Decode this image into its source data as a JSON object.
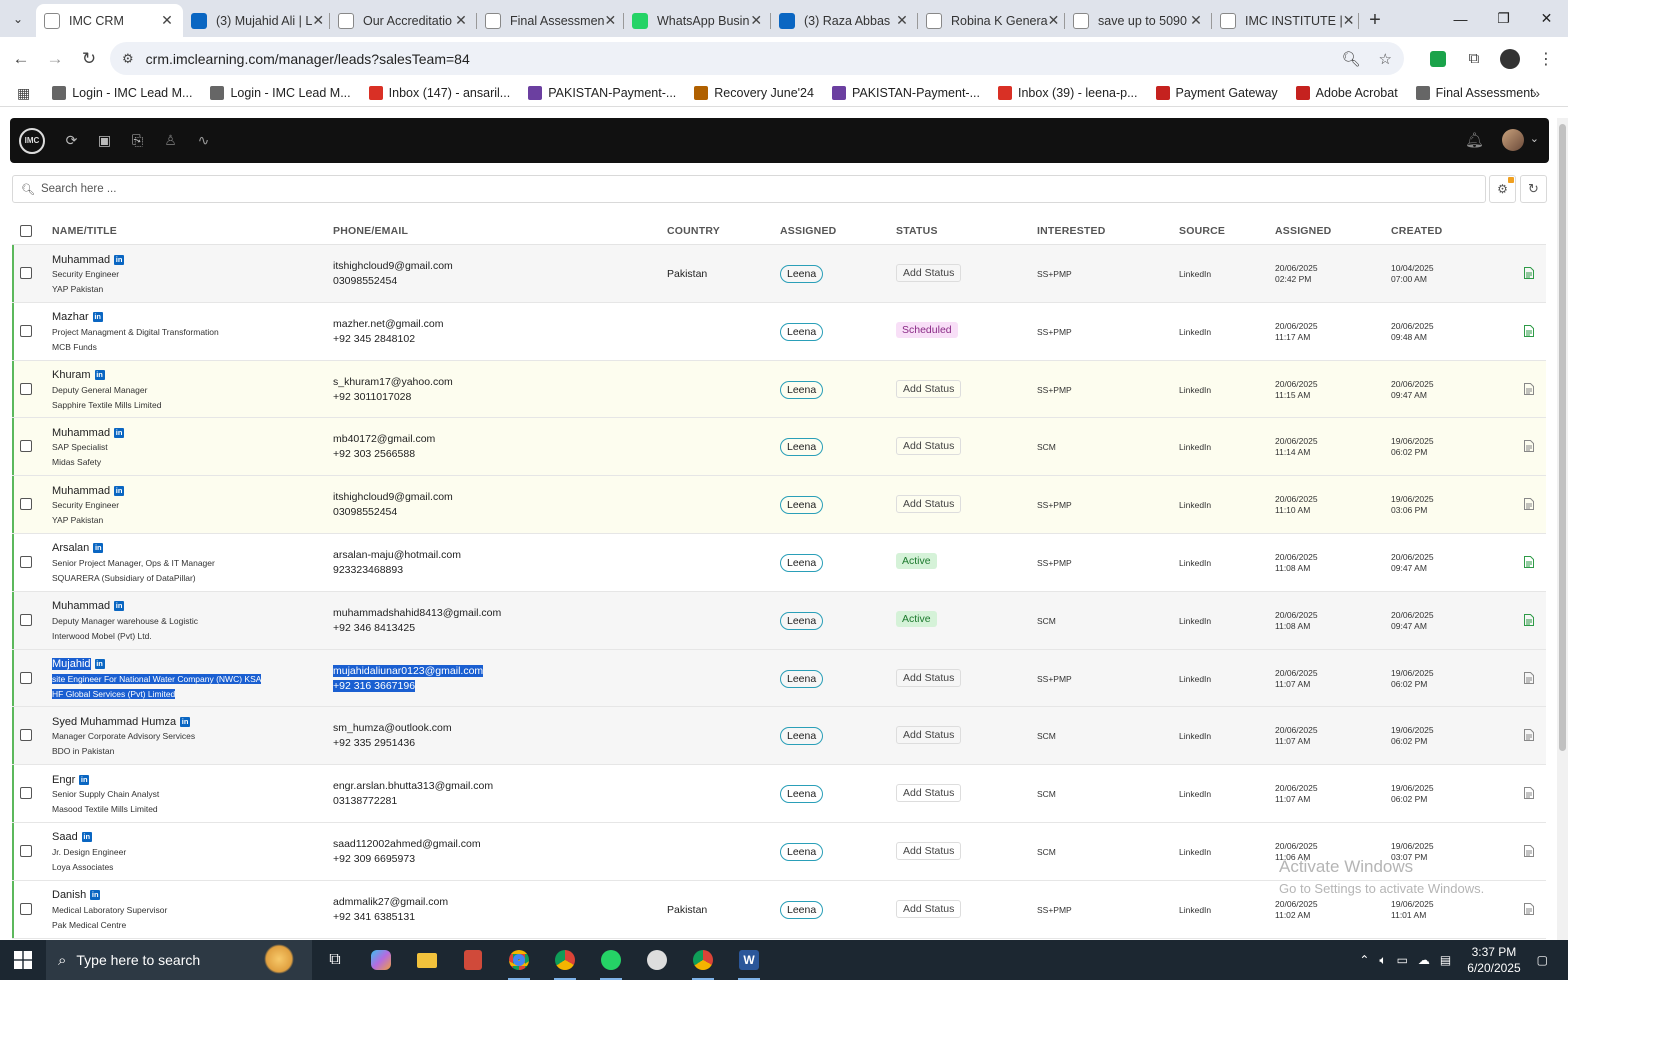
{
  "browser": {
    "tabs": [
      {
        "label": "IMC CRM",
        "active": true
      },
      {
        "label": "(3) Mujahid Ali | L"
      },
      {
        "label": "Our Accreditatio"
      },
      {
        "label": "Final Assessmen"
      },
      {
        "label": "WhatsApp Busin"
      },
      {
        "label": "(3) Raza Abbas"
      },
      {
        "label": "Robina K Genera"
      },
      {
        "label": "save up to 5090"
      },
      {
        "label": "IMC INSTITUTE |"
      }
    ],
    "url": "crm.imclearning.com/manager/leads?salesTeam=84",
    "bookmarks": [
      "Login - IMC Lead M...",
      "Login - IMC Lead M...",
      "Inbox (147) - ansaril...",
      "PAKISTAN-Payment-...",
      "Recovery June'24",
      "PAKISTAN-Payment-...",
      "Inbox (39) - leena-p...",
      "Payment Gateway",
      "Adobe Acrobat",
      "Final Assessment"
    ]
  },
  "app": {
    "logo_text": "IMC",
    "search_placeholder": "Search here ..."
  },
  "table": {
    "headers": {
      "name": "NAME/TITLE",
      "phone": "PHONE/EMAIL",
      "country": "COUNTRY",
      "assigned": "ASSIGNED",
      "status": "STATUS",
      "interested": "INTERESTED",
      "source": "SOURCE",
      "assigned_at": "ASSIGNED",
      "created": "CREATED"
    },
    "rows": [
      {
        "name": "Muhammad",
        "title": "Security Engineer",
        "company": "YAP Pakistan",
        "email": "itshighcloud9@gmail.com",
        "phone": "03098552454",
        "country": "Pakistan",
        "assigned": "Leena",
        "status": "Add Status",
        "interested": "SS+PMP",
        "source": "LinkedIn",
        "assigned_date": "20/06/2025",
        "assigned_time": "02:42 PM",
        "created_date": "10/04/2025",
        "created_time": "07:00 AM"
      },
      {
        "name": "Mazhar",
        "title": "Project Managment & Digital Transformation",
        "company": "MCB Funds",
        "email": "mazher.net@gmail.com",
        "phone": "+92 345 2848102",
        "country": "",
        "assigned": "Leena",
        "status": "Scheduled",
        "interested": "SS+PMP",
        "source": "LinkedIn",
        "assigned_date": "20/06/2025",
        "assigned_time": "11:17 AM",
        "created_date": "20/06/2025",
        "created_time": "09:48 AM"
      },
      {
        "name": "Khuram",
        "title": "Deputy General Manager",
        "company": "Sapphire Textile Mills Limited",
        "email": "s_khuram17@yahoo.com",
        "phone": "+92 3011017028",
        "country": "",
        "assigned": "Leena",
        "status": "Add Status",
        "interested": "SS+PMP",
        "source": "LinkedIn",
        "assigned_date": "20/06/2025",
        "assigned_time": "11:15 AM",
        "created_date": "20/06/2025",
        "created_time": "09:47 AM"
      },
      {
        "name": "Muhammad",
        "title": "SAP Specialist",
        "company": "Midas Safety",
        "email": "mb40172@gmail.com",
        "phone": "+92 303 2566588",
        "country": "",
        "assigned": "Leena",
        "status": "Add Status",
        "interested": "SCM",
        "source": "LinkedIn",
        "assigned_date": "20/06/2025",
        "assigned_time": "11:14 AM",
        "created_date": "19/06/2025",
        "created_time": "06:02 PM"
      },
      {
        "name": "Muhammad",
        "title": "Security Engineer",
        "company": "YAP Pakistan",
        "email": "itshighcloud9@gmail.com",
        "phone": "03098552454",
        "country": "",
        "assigned": "Leena",
        "status": "Add Status",
        "interested": "SS+PMP",
        "source": "LinkedIn",
        "assigned_date": "20/06/2025",
        "assigned_time": "11:10 AM",
        "created_date": "19/06/2025",
        "created_time": "03:06 PM"
      },
      {
        "name": "Arsalan",
        "title": "Senior Project Manager, Ops & IT Manager",
        "company": "SQUARERA (Subsidiary of DataPillar)",
        "email": "arsalan-maju@hotmail.com",
        "phone": "923323468893",
        "country": "",
        "assigned": "Leena",
        "status": "Active",
        "interested": "SS+PMP",
        "source": "LinkedIn",
        "assigned_date": "20/06/2025",
        "assigned_time": "11:08 AM",
        "created_date": "20/06/2025",
        "created_time": "09:47 AM"
      },
      {
        "name": "Muhammad",
        "title": "Deputy Manager warehouse & Logistic",
        "company": "Interwood Mobel (Pvt) Ltd.",
        "email": "muhammadshahid8413@gmail.com",
        "phone": "+92 346 8413425",
        "country": "",
        "assigned": "Leena",
        "status": "Active",
        "interested": "SCM",
        "source": "LinkedIn",
        "assigned_date": "20/06/2025",
        "assigned_time": "11:08 AM",
        "created_date": "20/06/2025",
        "created_time": "09:47 AM"
      },
      {
        "name": "Mujahid",
        "title": "site Engineer For National Water Company (NWC) KSA",
        "company": "HF Global Services (Pvt) Limited",
        "email": "mujahidaliunar0123@gmail.com",
        "phone": "+92 316 3667196",
        "country": "",
        "assigned": "Leena",
        "status": "Add Status",
        "interested": "SS+PMP",
        "source": "LinkedIn",
        "assigned_date": "20/06/2025",
        "assigned_time": "11:07 AM",
        "created_date": "19/06/2025",
        "created_time": "06:02 PM"
      },
      {
        "name": "Syed Muhammad Humza",
        "title": "Manager Corporate Advisory Services",
        "company": "BDO in Pakistan",
        "email": "sm_humza@outlook.com",
        "phone": "+92 335 2951436",
        "country": "",
        "assigned": "Leena",
        "status": "Add Status",
        "interested": "SCM",
        "source": "LinkedIn",
        "assigned_date": "20/06/2025",
        "assigned_time": "11:07 AM",
        "created_date": "19/06/2025",
        "created_time": "06:02 PM"
      },
      {
        "name": "Engr",
        "title": "Senior Supply Chain Analyst",
        "company": "Masood Textile Mills Limited",
        "email": "engr.arslan.bhutta313@gmail.com",
        "phone": "03138772281",
        "country": "",
        "assigned": "Leena",
        "status": "Add Status",
        "interested": "SCM",
        "source": "LinkedIn",
        "assigned_date": "20/06/2025",
        "assigned_time": "11:07 AM",
        "created_date": "19/06/2025",
        "created_time": "06:02 PM"
      },
      {
        "name": "Saad",
        "title": "Jr. Design Engineer",
        "company": "Loya Associates",
        "email": "saad112002ahmed@gmail.com",
        "phone": "+92 309 6695973",
        "country": "",
        "assigned": "Leena",
        "status": "Add Status",
        "interested": "SCM",
        "source": "LinkedIn",
        "assigned_date": "20/06/2025",
        "assigned_time": "11:06 AM",
        "created_date": "19/06/2025",
        "created_time": "03:07 PM"
      },
      {
        "name": "Danish",
        "title": "Medical Laboratory Supervisor",
        "company": "Pak Medical Centre",
        "email": "admmalik27@gmail.com",
        "phone": "+92 341 6385131",
        "country": "Pakistan",
        "assigned": "Leena",
        "status": "Add Status",
        "interested": "SS+PMP",
        "source": "LinkedIn",
        "assigned_date": "20/06/2025",
        "assigned_time": "11:02 AM",
        "created_date": "19/06/2025",
        "created_time": "11:01 AM"
      }
    ]
  },
  "watermark": {
    "line1": "Activate Windows",
    "line2": "Go to Settings to activate Windows."
  },
  "taskbar": {
    "search_placeholder": "Type here to search",
    "time": "3:37 PM",
    "date": "6/20/2025"
  }
}
